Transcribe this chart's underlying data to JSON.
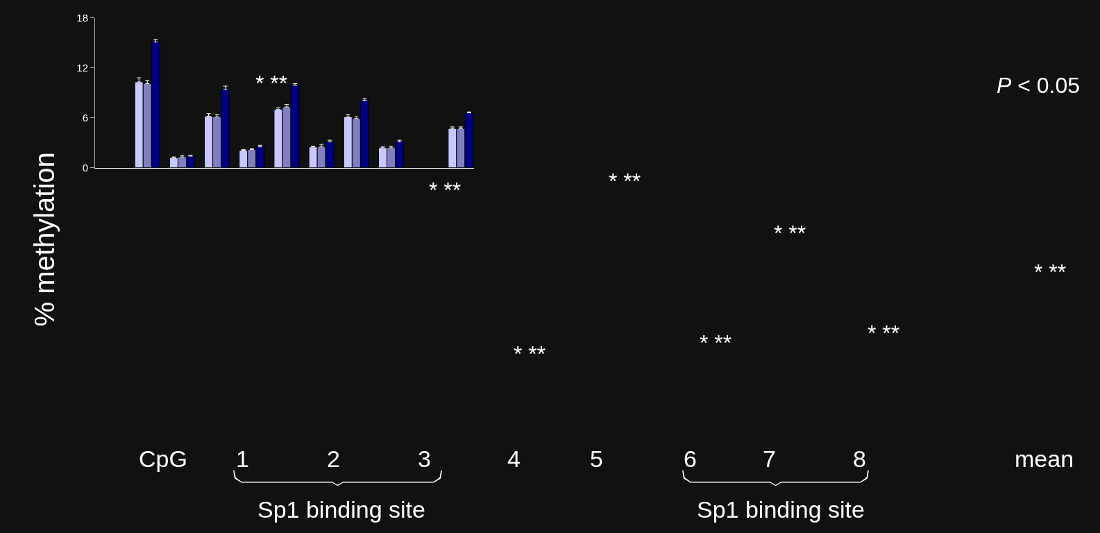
{
  "chart_data": {
    "type": "bar",
    "ylabel": "% methylation",
    "categories": [
      null,
      null,
      null,
      null,
      null,
      null,
      null,
      null,
      null,
      null,
      null
    ],
    "series": [
      {
        "color": "#c8c8ff",
        "values": [
          null,
          10.3,
          1.2,
          6.2,
          2.1,
          7.0,
          2.5,
          6.1,
          2.4,
          null,
          4.7
        ],
        "errors": [
          null,
          [
            10.3,
            10.8
          ],
          [
            1.2,
            1.3
          ],
          [
            6.2,
            6.5
          ],
          [
            2.1,
            2.2
          ],
          [
            7.0,
            7.2
          ],
          [
            2.5,
            2.6
          ],
          [
            6.1,
            6.4
          ],
          [
            2.4,
            2.5
          ],
          null,
          [
            4.7,
            4.9
          ]
        ]
      },
      {
        "color": "#8080c0",
        "values": [
          null,
          10.1,
          1.3,
          6.1,
          2.2,
          7.3,
          2.5,
          5.9,
          2.4,
          null,
          4.7
        ],
        "errors": [
          null,
          [
            10.1,
            10.5
          ],
          [
            1.3,
            1.5
          ],
          [
            6.1,
            6.4
          ],
          [
            2.2,
            2.3
          ],
          [
            7.3,
            7.6
          ],
          [
            2.5,
            2.8
          ],
          [
            5.9,
            6.1
          ],
          [
            2.4,
            2.6
          ],
          null,
          [
            4.7,
            4.9
          ]
        ]
      },
      {
        "color": "#000080",
        "values": [
          null,
          15.1,
          1.4,
          9.4,
          2.5,
          9.9,
          3.1,
          8.1,
          3.1,
          null,
          6.6
        ],
        "errors": [
          null,
          [
            15.1,
            15.4
          ],
          [
            1.4,
            1.5
          ],
          [
            9.4,
            9.8
          ],
          [
            2.5,
            2.7
          ],
          [
            9.9,
            10.1
          ],
          [
            3.1,
            3.3
          ],
          [
            8.1,
            8.3
          ],
          [
            3.1,
            3.3
          ],
          null,
          [
            6.6,
            6.7
          ]
        ]
      }
    ],
    "ylim": [
      0,
      18
    ],
    "yticks": [
      0,
      6,
      12,
      18
    ],
    "tick_labels": "y",
    "grid": false,
    "annotations": [
      "P < 0.05",
      "* **",
      "* **",
      "* **",
      "* **",
      "* **",
      "* **",
      "* **",
      "* **",
      "CpG",
      "1",
      "2",
      "3",
      "4",
      "5",
      "6",
      "7",
      "8",
      "mean",
      "Sp1 binding site",
      "Sp1 binding site"
    ]
  }
}
